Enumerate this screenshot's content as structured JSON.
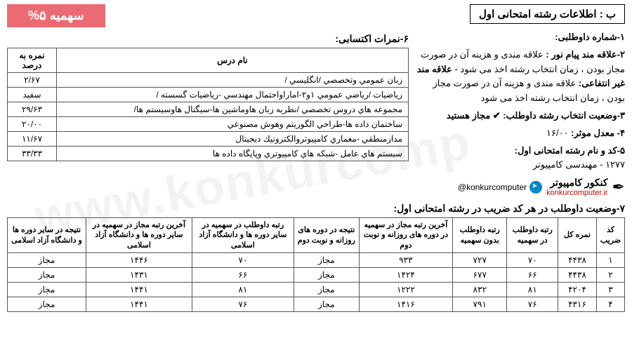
{
  "header": {
    "title": "ب : اطلاعات رشته امتحانی اول",
    "quota": "سهمیه ۵%"
  },
  "right": {
    "i1": "۱-شماره داوطلبی:",
    "i2_label": "۲-علاقه مند پیام نور :",
    "i2_text": "علاقه مندی و هزینه آن در صورت مجاز بودن ، زمان انتخاب رشته اخذ می شود - ",
    "i2b_label": "علاقه مند غیر انتفاعی:",
    "i2b_text": " علاقه مندی و هزینه آن در صورت مجاز بودن ، زمان انتخاب رشته اخذ می شود",
    "i3_label": "۳-وضعیت انتخاب رشته داوطلب: ",
    "i3_val": "✔ مجاز هستید",
    "i4_label": "۴- معدل موثر: ",
    "i4_val": "۱۶/۰۰",
    "i5_label": "۵-کد و نام رشته امتحانی اول:",
    "i5_val": "۱۲۷۷ - مهندسی کامپیوتر",
    "konkur": "کنکور کامپیوتر",
    "konkur_url": "konkurcomputer.ir",
    "tg_handle": "@konkurcomputer"
  },
  "scores": {
    "heading": "۶-نمرات اکتسابی:",
    "col_name": "نام درس",
    "col_pct": "نمره به درصد",
    "rows": [
      {
        "name": "زبان عمومي وتخصصي /انگليسي /",
        "pct": "۲/۶۷"
      },
      {
        "name": "رياضيات /رياضي عمومي ۱و۲-اماراواحتمال مهندسي -رياضيات گسسته /",
        "pct": "سفید"
      },
      {
        "name": "مجموعه هاي دروس تخصصي /نظريه زبان هاوماشين ها-سيگنال هاوسيستم ها/",
        "pct": "۲۹/۶۳"
      },
      {
        "name": "ساختمان داده ها-طراحي الگوريتم وهوش مصنوعي",
        "pct": "۲۰/۰۰"
      },
      {
        "name": "مدارمنطقي -معماري كامپيوتروالكترونيك ديجيتال",
        "pct": "۱۱/۶۷"
      },
      {
        "name": "سيستم هاي عامل -شبكه هاي كامپيوتري وپايگاه داده ها",
        "pct": "۳۳/۳۳"
      }
    ]
  },
  "bottom": {
    "heading": "۷-وضعیت داوطلب در هر کد ضریب در رشته امتحانی اول:",
    "cols": {
      "c1": "کد ضریب",
      "c2": "نمره کل",
      "c3": "رتبه داوطلب در سهمیه",
      "c4": "رتبه داوطلب بدون سهمیه",
      "c5": "آخرین رتبه مجاز در سهمیه در دوره های روزانه و نوبت دوم",
      "c6": "نتیجه در دوره های روزانه و نوبت دوم",
      "c7": "رتبه داوطلب در سهمیه در سایر دوره ها و دانشگاه آزاد اسلامی",
      "c8": "آخرین رتبه مجاز در سهمیه در سایر دوره ها و دانشگاه آزاد اسلامی",
      "c9": "نتیجه در سایر دوره ها و دانشگاه آزاد اسلامی"
    },
    "rows": [
      {
        "c1": "۱",
        "c2": "۴۴۳۸",
        "c3": "۷۰",
        "c4": "۷۲۷",
        "c5": "۹۳۳",
        "c6": "مجاز",
        "c7": "۷۰",
        "c8": "۱۴۴۶",
        "c9": "مجاز"
      },
      {
        "c1": "۲",
        "c2": "۴۴۳۸",
        "c3": "۶۶",
        "c4": "۶۷۷",
        "c5": "۱۴۲۴",
        "c6": "مجاز",
        "c7": "۶۶",
        "c8": "۱۴۳۱",
        "c9": "مجاز"
      },
      {
        "c1": "۳",
        "c2": "۴۲۰۴",
        "c3": "۸۱",
        "c4": "۸۳۲",
        "c5": "۱۲۲۲",
        "c6": "مجاز",
        "c7": "۸۱",
        "c8": "۱۴۴۱",
        "c9": "مجاز"
      },
      {
        "c1": "۴",
        "c2": "۴۳۱۶",
        "c3": "۷۶",
        "c4": "۷۹۱",
        "c5": "۱۴۱۶",
        "c6": "مجاز",
        "c7": "۷۶",
        "c8": "۱۴۴۱",
        "c9": "مجاز"
      }
    ]
  },
  "watermark": "www.konkurcomp"
}
